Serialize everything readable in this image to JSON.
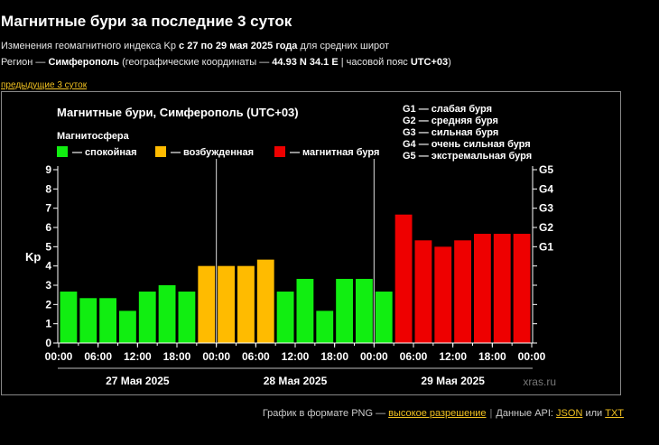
{
  "header": {
    "title": "Магнитные бури за последние 3 суток",
    "sub1_pre": "Изменения геомагнитного индекса Kp ",
    "sub1_bold": "с 27 по 29 мая 2025 года",
    "sub1_post": " для средних широт",
    "sub2_pre": "Регион — ",
    "sub2_city": "Симферополь",
    "sub2_mid": " (географические координаты — ",
    "sub2_coords": "44.93 N 34.1 E",
    "sub2_sep": " | часовой пояс ",
    "sub2_tz": "UTC+03",
    "sub2_end": ")",
    "prev_link": "предыдущие 3 суток"
  },
  "footer": {
    "text": "График в формате PNG — ",
    "hires_link": "высокое разрешение",
    "api_text": "Данные API: ",
    "json_link": "JSON",
    "or_text": " или ",
    "txt_link": "TXT"
  },
  "chart_data": {
    "type": "bar",
    "title": "Магнитные бури, Симферополь (UTC+03)",
    "legend_title": "Магнитосфера",
    "legend": [
      {
        "label": "— спокойная",
        "color": "#11ee11"
      },
      {
        "label": "— возбужденная",
        "color": "#ffbb00"
      },
      {
        "label": "— магнитная буря",
        "color": "#ee0000"
      }
    ],
    "storm_legend": [
      "G1 — слабая буря",
      "G2 — средняя буря",
      "G3 — сильная буря",
      "G4 — очень сильная буря",
      "G5 — экстремальная буря"
    ],
    "ylabel": "Kp",
    "ylim": [
      0,
      9
    ],
    "yticks": [
      0,
      1,
      2,
      3,
      4,
      5,
      6,
      7,
      8,
      9
    ],
    "right_ticks": [
      {
        "label": "G1",
        "value": 5
      },
      {
        "label": "G2",
        "value": 6
      },
      {
        "label": "G3",
        "value": 7
      },
      {
        "label": "G4",
        "value": 8
      },
      {
        "label": "G5",
        "value": 9
      }
    ],
    "xtick_labels": [
      "00:00",
      "06:00",
      "12:00",
      "18:00",
      "00:00",
      "06:00",
      "12:00",
      "18:00",
      "00:00",
      "06:00",
      "12:00",
      "18:00",
      "00:00"
    ],
    "days": [
      "27 Мая 2025",
      "28 Мая 2025",
      "29 Мая 2025"
    ],
    "watermark": "xras.ru",
    "values": [
      2.67,
      2.33,
      2.33,
      1.67,
      2.67,
      3.0,
      2.67,
      4.0,
      4.0,
      4.0,
      4.33,
      2.67,
      3.33,
      1.67,
      3.33,
      3.33,
      2.67,
      6.67,
      5.33,
      5.0,
      5.33,
      5.67,
      5.67,
      5.67
    ],
    "colors": {
      "quiet": "#11ee11",
      "active": "#ffbb00",
      "storm": "#ee0000"
    },
    "grid": false
  }
}
